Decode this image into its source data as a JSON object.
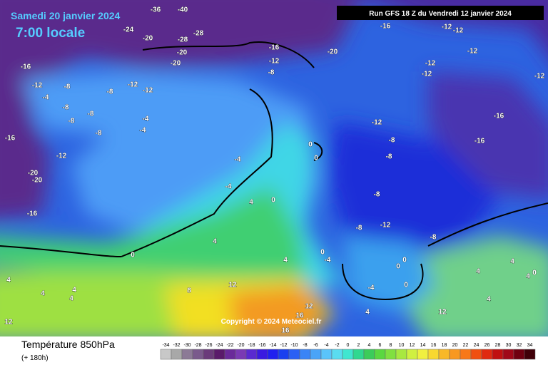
{
  "header": {
    "date": "Samedi 20 janvier 2024",
    "time": "7:00 locale",
    "run": "Run GFS 18 Z du Vendredi 12 janvier 2024"
  },
  "copyright": "Copyright © 2024 Meteociel.fr",
  "legend": {
    "title": "Température 850hPa",
    "subtitle": "(+ 180h)",
    "scale": [
      -34,
      -32,
      -30,
      -28,
      -26,
      -24,
      -22,
      -20,
      -18,
      -16,
      -14,
      -12,
      -10,
      -8,
      -6,
      -4,
      -2,
      0,
      2,
      4,
      6,
      8,
      10,
      12,
      14,
      16,
      18,
      20,
      22,
      24,
      26,
      28,
      30,
      32,
      34
    ]
  },
  "map_labels": [
    "-36",
    "-40",
    "-24",
    "-20",
    "-28",
    "-28",
    "-20",
    "-20",
    "-16",
    "-12",
    "-8",
    "-20",
    "-16",
    "-12",
    "-12",
    "-12",
    "-12",
    "-12",
    "-12",
    "-16",
    "-16",
    "-12",
    "-8",
    "-8",
    "-8",
    "-8",
    "-12",
    "-8",
    "-16",
    "-12",
    "-8",
    "-12",
    "-12",
    "-8",
    "-4",
    "-8",
    "-4",
    "-4",
    "-8",
    "-8",
    "-8",
    "-16",
    "-12",
    "-20",
    "-20",
    "-16",
    "-4",
    "-4",
    "4",
    "0",
    "0",
    "0",
    "4",
    "0",
    "4",
    "0",
    "-4",
    "4",
    "4",
    "4",
    "4",
    "8",
    "12",
    "12",
    "16",
    "-4",
    "0",
    "0",
    "0",
    "4",
    "12",
    "4",
    "4",
    "4",
    "4",
    "0",
    "12",
    "16"
  ]
}
